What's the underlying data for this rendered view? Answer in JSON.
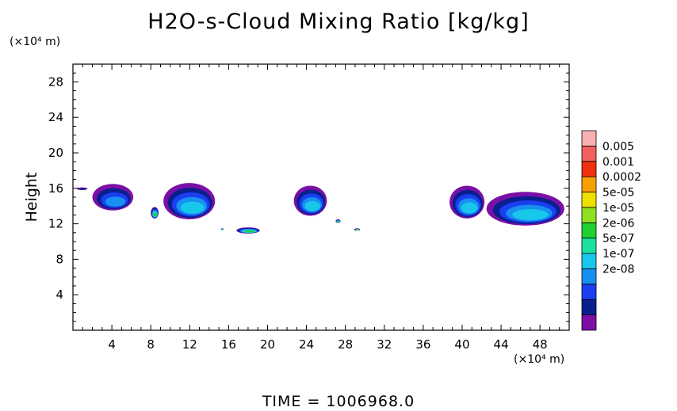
{
  "chart_data": {
    "type": "heatmap",
    "title": "H2O-s-Cloud Mixing Ratio [kg/kg]",
    "ylabel": "Height",
    "y_unit": "(×10⁴ m)",
    "x_unit": "(×10⁴ m)",
    "footer": "TIME  =  1006968.0",
    "xlim": [
      0,
      51
    ],
    "ylim": [
      0,
      30
    ],
    "x_ticks": [
      "4",
      "8",
      "12",
      "16",
      "20",
      "24",
      "28",
      "32",
      "36",
      "40",
      "44",
      "48"
    ],
    "y_ticks": [
      "4",
      "8",
      "12",
      "16",
      "20",
      "24",
      "28"
    ],
    "colorbar": {
      "labels": [
        "0.005",
        "0.001",
        "0.0002",
        "5e-05",
        "1e-05",
        "2e-06",
        "5e-07",
        "1e-07",
        "2e-08"
      ],
      "colors": [
        "#7b0fa6",
        "#0a1f8f",
        "#1a3ff0",
        "#1790f0",
        "#18c8ea",
        "#1be0a0",
        "#20d030",
        "#8fe020",
        "#f0e000",
        "#f8a000",
        "#f03010",
        "#f06060",
        "#f8b0b0"
      ]
    },
    "cloud_patches": [
      {
        "x": [
          0.4,
          1.5
        ],
        "y": [
          15.8,
          16.1
        ],
        "level": 1
      },
      {
        "x": [
          2.0,
          6.2
        ],
        "y": [
          13.5,
          16.5
        ],
        "level": 3
      },
      {
        "x": [
          8.0,
          8.8
        ],
        "y": [
          12.6,
          13.9
        ],
        "level": 6
      },
      {
        "x": [
          9.3,
          14.6
        ],
        "y": [
          12.5,
          16.6
        ],
        "level": 4
      },
      {
        "x": [
          15.2,
          15.5
        ],
        "y": [
          11.3,
          11.5
        ],
        "level": 5
      },
      {
        "x": [
          16.8,
          19.2
        ],
        "y": [
          10.9,
          11.6
        ],
        "level": 6
      },
      {
        "x": [
          22.7,
          26.1
        ],
        "y": [
          12.9,
          16.3
        ],
        "level": 4
      },
      {
        "x": [
          27.0,
          27.5
        ],
        "y": [
          12.1,
          12.5
        ],
        "level": 6
      },
      {
        "x": [
          28.9,
          29.5
        ],
        "y": [
          11.2,
          11.5
        ],
        "level": 7
      },
      {
        "x": [
          38.7,
          42.3
        ],
        "y": [
          12.6,
          16.3
        ],
        "level": 4
      },
      {
        "x": [
          42.5,
          50.5
        ],
        "y": [
          11.8,
          15.6
        ],
        "level": 4
      }
    ]
  }
}
